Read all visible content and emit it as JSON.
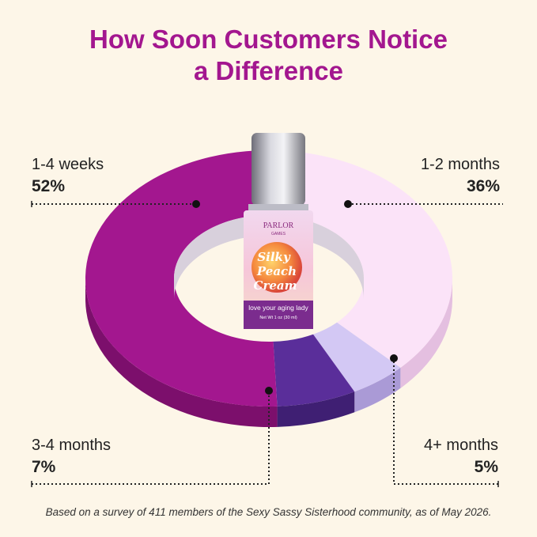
{
  "title_line1": "How Soon Customers Notice",
  "title_line2": "a Difference",
  "footnote": "Based on a survey of 411 members of the Sexy Sassy Sisterhood community, as of May 2026.",
  "product": {
    "brand": "PARLOR",
    "brand_sub": "GAMES",
    "name_lines": [
      "Silky",
      "Peach",
      "Cream"
    ],
    "tagline": "love your aging lady",
    "net_wt": "Net Wt 1 oz (30 ml)"
  },
  "colors": {
    "background": "#fdf6e8",
    "title": "#a3178f",
    "weeks": "#a3178f",
    "one_two_months": "#fbe3f8",
    "three_four_months": "#5a2e9a",
    "four_plus_months": "#d3c8f4"
  },
  "chart_data": {
    "type": "pie",
    "style": "3d-donut",
    "categories": [
      "1-4 weeks",
      "1-2 months",
      "3-4 months",
      "4+ months"
    ],
    "values": [
      52,
      36,
      7,
      5
    ],
    "value_labels": [
      "52%",
      "36%",
      "7%",
      "5%"
    ],
    "grid": false,
    "legend": "callout labels"
  }
}
